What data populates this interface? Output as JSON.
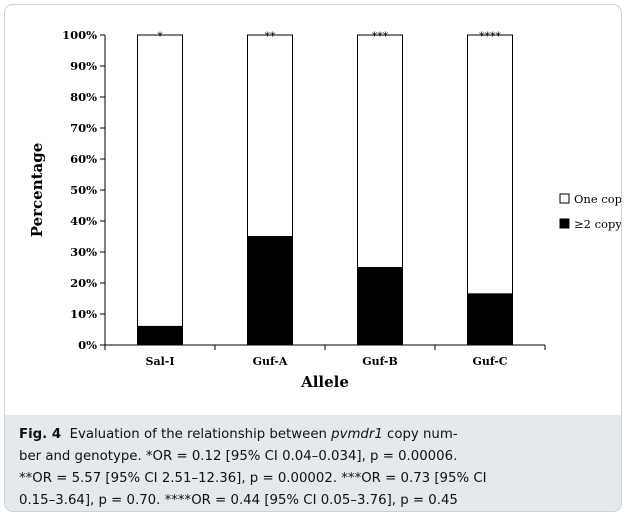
{
  "chart_data": {
    "type": "bar",
    "stacked": true,
    "percent": true,
    "categories": [
      "Sal-I",
      "Guf-A",
      "Guf-B",
      "Guf-C"
    ],
    "series": [
      {
        "name": "≥2 copy",
        "color": "#000000",
        "values": [
          6,
          35,
          25,
          16.5
        ]
      },
      {
        "name": "One copy",
        "color": "#ffffff",
        "values": [
          94,
          65,
          75,
          83.5
        ]
      }
    ],
    "annotations": [
      "*",
      "**",
      "***",
      "****"
    ],
    "xlabel": "Allele",
    "ylabel": "Percentage",
    "ylim": [
      0,
      100
    ],
    "yticks": [
      "0%",
      "10%",
      "20%",
      "30%",
      "40%",
      "50%",
      "60%",
      "70%",
      "80%",
      "90%",
      "100%"
    ],
    "legend": [
      "One copy",
      "≥2 copy"
    ],
    "legend_position": "right",
    "grid": false
  },
  "caption": {
    "label": "Fig. 4",
    "text_before": "Evaluation of the relationship between ",
    "gene": "pvmdr1",
    "text_line1_after": " copy num-",
    "line2": "ber and genotype. *OR = 0.12 [95% CI 0.04–0.034], p = 0.00006.",
    "line3": "**OR = 5.57 [95% CI 2.51–12.36], p = 0.00002. ***OR = 0.73 [95% CI",
    "line4": "0.15–3.64], p = 0.70. ****OR = 0.44 [95% CI 0.05–3.76], p = 0.45"
  }
}
